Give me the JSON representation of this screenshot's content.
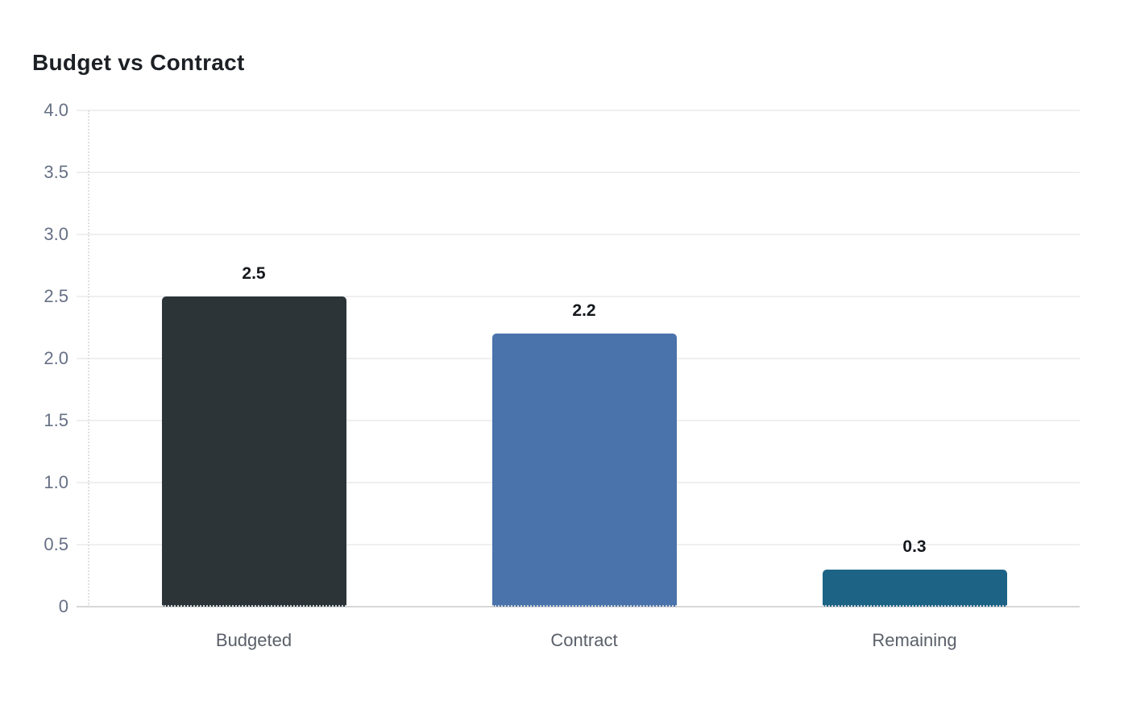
{
  "page": {
    "background": "#ffffff"
  },
  "chart_data": {
    "type": "bar",
    "title": "Budget vs Contract",
    "categories": [
      "Budgeted",
      "Contract",
      "Remaining"
    ],
    "values": [
      2.5,
      2.2,
      0.3
    ],
    "value_labels": [
      "2.5",
      "2.2",
      "0.3"
    ],
    "bar_colors": [
      "#2c3438",
      "#4a72ab",
      "#1c6386"
    ],
    "xlabel": "",
    "ylabel": "",
    "ylim": [
      0,
      4
    ],
    "ytick_values": [
      4.0,
      3.5,
      3.0,
      2.5,
      2.0,
      1.5,
      1.0,
      0.5,
      0
    ],
    "ytick_labels": [
      "4.0",
      "3.5",
      "3.0",
      "2.5",
      "2.0",
      "1.5",
      "1.0",
      "0.5",
      "0"
    ],
    "grid": true,
    "legend": false
  },
  "colors": {
    "grid_line": "#efefef",
    "baseline": "#d7d7d7",
    "axis_dotted": "#e0e0e0",
    "ytick_text": "#667085",
    "xtick_text": "#5a6069",
    "value_label_text": "#15181c",
    "title_text": "#1c2025"
  }
}
